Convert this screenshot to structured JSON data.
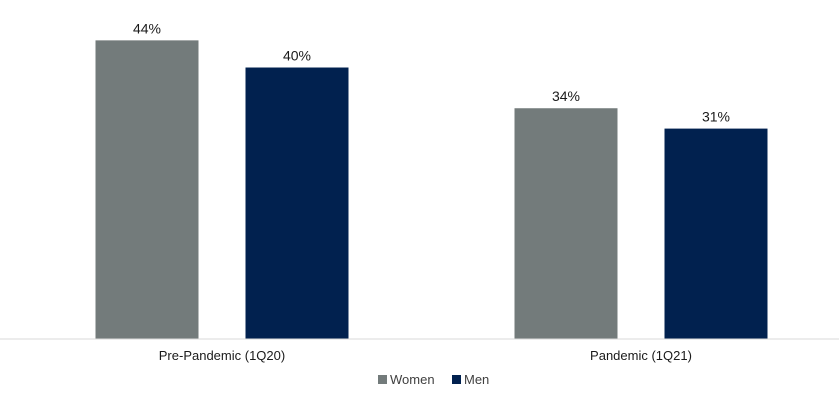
{
  "chart_data": {
    "type": "bar",
    "title": "",
    "xlabel": "",
    "ylabel": "",
    "categories": [
      "Pre-Pandemic (1Q20)",
      "Pandemic (1Q21)"
    ],
    "series": [
      {
        "name": "Women",
        "values": [
          44,
          34
        ],
        "labels": [
          "44%",
          "34%"
        ],
        "color": "#737B7B"
      },
      {
        "name": "Men",
        "values": [
          40,
          31
        ],
        "labels": [
          "40%",
          "31%"
        ],
        "color": "#01214F"
      }
    ],
    "ylim": [
      0,
      47
    ],
    "grid": false,
    "legend_position": "bottom"
  }
}
